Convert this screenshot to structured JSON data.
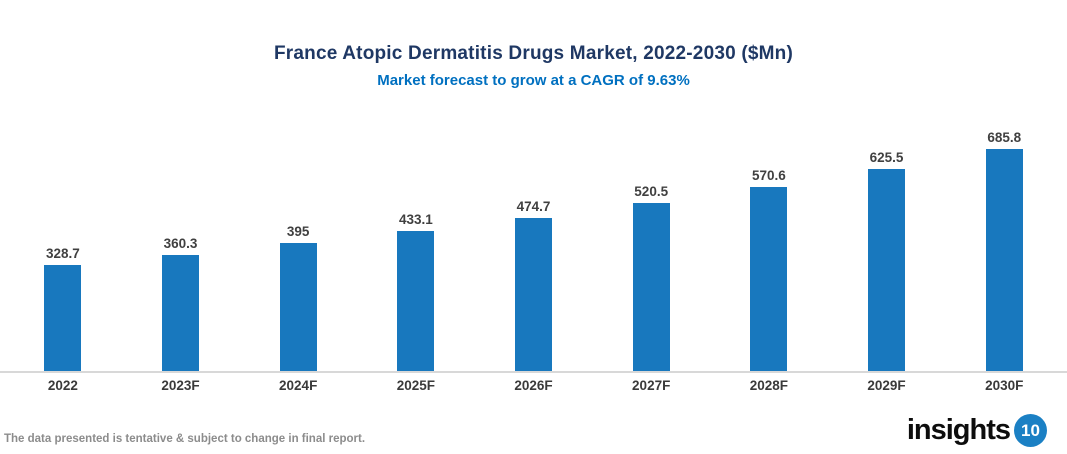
{
  "header": {
    "title": "France Atopic Dermatitis Drugs Market, 2022-2030 ($Mn)",
    "subtitle": "Market forecast to grow at a CAGR of 9.63%"
  },
  "chart_data": {
    "type": "bar",
    "title": "France Atopic Dermatitis Drugs Market, 2022-2030 ($Mn)",
    "subtitle": "Market forecast to grow at a CAGR of 9.63%",
    "categories": [
      "2022",
      "2023F",
      "2024F",
      "2025F",
      "2026F",
      "2027F",
      "2028F",
      "2029F",
      "2030F"
    ],
    "values": [
      328.7,
      360.3,
      395,
      433.1,
      474.7,
      520.5,
      570.6,
      625.5,
      685.8
    ],
    "xlabel": "",
    "ylabel": "",
    "ylim": [
      0,
      750
    ],
    "grid": false,
    "legend": false,
    "data_labels": true,
    "bar_color": "#1878BE"
  },
  "footer": {
    "disclaimer": "The data presented is tentative & subject to change in final report.",
    "logo_text": "insights",
    "logo_badge": "10"
  },
  "colors": {
    "title": "#1F3864",
    "subtitle": "#0070C0",
    "bar": "#1878BE",
    "value_label": "#404040",
    "axis_label": "#3A3A3A",
    "axis_line": "#D8D8D8",
    "disclaimer": "#8C8C8C",
    "logo_badge_bg": "#1B80C4"
  }
}
